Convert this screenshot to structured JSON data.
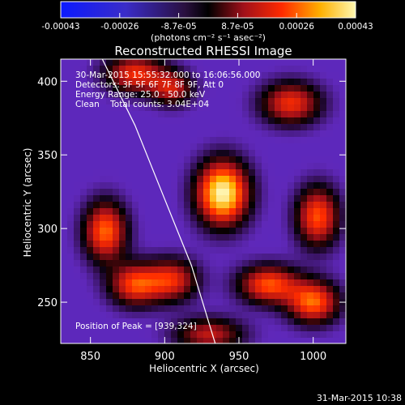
{
  "chart_data": {
    "type": "heatmap",
    "title": "Reconstructed RHESSI Image",
    "xlabel": "Heliocentric X (arcsec)",
    "ylabel": "Heliocentric Y (arcsec)",
    "xlim": [
      830,
      1022
    ],
    "ylim": [
      222,
      415
    ],
    "x_ticks": [
      850,
      900,
      950,
      1000
    ],
    "y_ticks": [
      250,
      300,
      350,
      400
    ],
    "colorbar": {
      "ticks": [
        "-0.00043",
        "-0.00026",
        "-8.7e-05",
        "8.7e-05",
        "0.00026",
        "0.00043"
      ],
      "range": [
        -0.00043,
        0.00043
      ],
      "unit": "(photons cm⁻² s⁻¹ asec⁻²)"
    },
    "annotations": [
      "30-Mar-2015 15:55:32.000 to 16:06:56.000",
      "Detectors: 3F 5F 6F 7F 8F 9F, Att 0",
      "Energy Range: 25.0 - 50.0 keV",
      "Clean    Total counts: 3.04E+04"
    ],
    "peak_label": "Position of Peak = [939,324]",
    "peak": {
      "x": 939,
      "y": 324,
      "value": 0.00043
    },
    "sources": [
      {
        "x": 939,
        "y": 324,
        "value": 0.00043,
        "sx": 12,
        "sy": 15
      },
      {
        "x": 860,
        "y": 298,
        "value": 0.00026,
        "sx": 10,
        "sy": 14
      },
      {
        "x": 880,
        "y": 262,
        "value": 0.00022,
        "sx": 12,
        "sy": 10
      },
      {
        "x": 905,
        "y": 265,
        "value": 0.00018,
        "sx": 12,
        "sy": 10
      },
      {
        "x": 970,
        "y": 262,
        "value": 0.00024,
        "sx": 14,
        "sy": 9
      },
      {
        "x": 1000,
        "y": 250,
        "value": 0.00026,
        "sx": 12,
        "sy": 10
      },
      {
        "x": 1003,
        "y": 308,
        "value": 0.00024,
        "sx": 10,
        "sy": 14
      },
      {
        "x": 985,
        "y": 385,
        "value": 0.0002,
        "sx": 14,
        "sy": 10
      },
      {
        "x": 880,
        "y": 405,
        "value": 0.0002,
        "sx": 14,
        "sy": 9
      },
      {
        "x": 905,
        "y": 395,
        "value": 0.00014,
        "sx": 10,
        "sy": 8
      },
      {
        "x": 930,
        "y": 228,
        "value": 0.00014,
        "sx": 16,
        "sy": 8
      }
    ],
    "background": -0.00012,
    "limb": [
      [
        858,
        415
      ],
      [
        880,
        370
      ],
      [
        900,
        320
      ],
      [
        918,
        275
      ],
      [
        934,
        222
      ]
    ]
  },
  "footer": {
    "date": "31-Mar-2015 10:38"
  }
}
